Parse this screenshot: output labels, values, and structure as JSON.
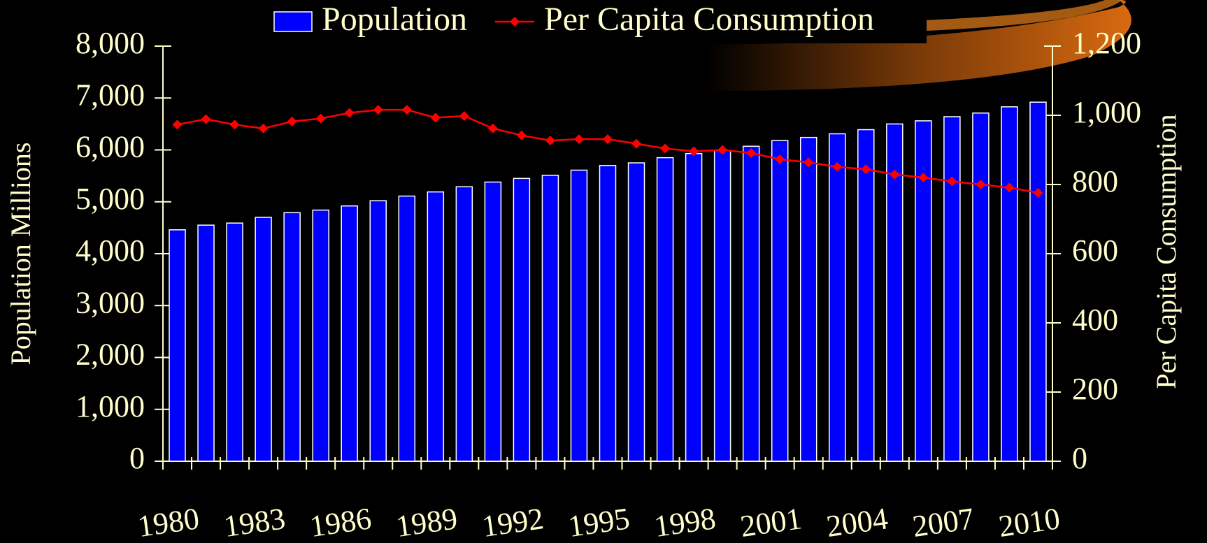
{
  "chart_data": {
    "type": "bar-line",
    "categories": [
      "1980",
      null,
      null,
      "1983",
      null,
      null,
      "1986",
      null,
      null,
      "1989",
      null,
      null,
      "1992",
      null,
      null,
      "1995",
      null,
      null,
      "1998",
      null,
      null,
      "2001",
      null,
      null,
      "2004",
      null,
      null,
      "2007",
      null,
      null,
      "2010"
    ],
    "series": [
      {
        "name": "Population",
        "type": "bar",
        "color": "#0000ff",
        "values": [
          4460,
          4550,
          4590,
          4700,
          4790,
          4840,
          4920,
          5020,
          5110,
          5190,
          5290,
          5380,
          5450,
          5510,
          5610,
          5700,
          5750,
          5850,
          5930,
          5990,
          6070,
          6180,
          6240,
          6310,
          6390,
          6500,
          6560,
          6640,
          6710,
          6830,
          6920
        ]
      },
      {
        "name": "Per Capita Consumption",
        "type": "line",
        "axis": "y2",
        "color": "#ff0000",
        "values": [
          973,
          989,
          973,
          962,
          982,
          991,
          1007,
          1016,
          1016,
          993,
          998,
          962,
          942,
          927,
          931,
          931,
          918,
          904,
          896,
          900,
          891,
          873,
          864,
          851,
          844,
          829,
          820,
          809,
          800,
          791,
          776
        ]
      }
    ],
    "y_label": "Population Millions",
    "y2_label": "Per Capita Consumption",
    "ylim": [
      0,
      8000
    ],
    "yticks": [
      0,
      {
        "value": 1000,
        "label": "1,000"
      },
      {
        "value": 2000,
        "label": "2,000"
      },
      {
        "value": 3000,
        "label": "3,000"
      },
      {
        "value": 4000,
        "label": "4,000"
      },
      {
        "value": 5000,
        "label": "5,000"
      },
      {
        "value": 6000,
        "label": "6,000"
      },
      {
        "value": 7000,
        "label": "7,000"
      },
      {
        "value": 8000,
        "label": "8,000"
      }
    ],
    "y2lim": [
      0,
      1200
    ],
    "y2ticks": [
      0,
      200,
      400,
      600,
      800,
      {
        "value": 1000,
        "label": "1,000"
      },
      {
        "value": 1200,
        "label": "1,200"
      }
    ],
    "legend": "top"
  }
}
